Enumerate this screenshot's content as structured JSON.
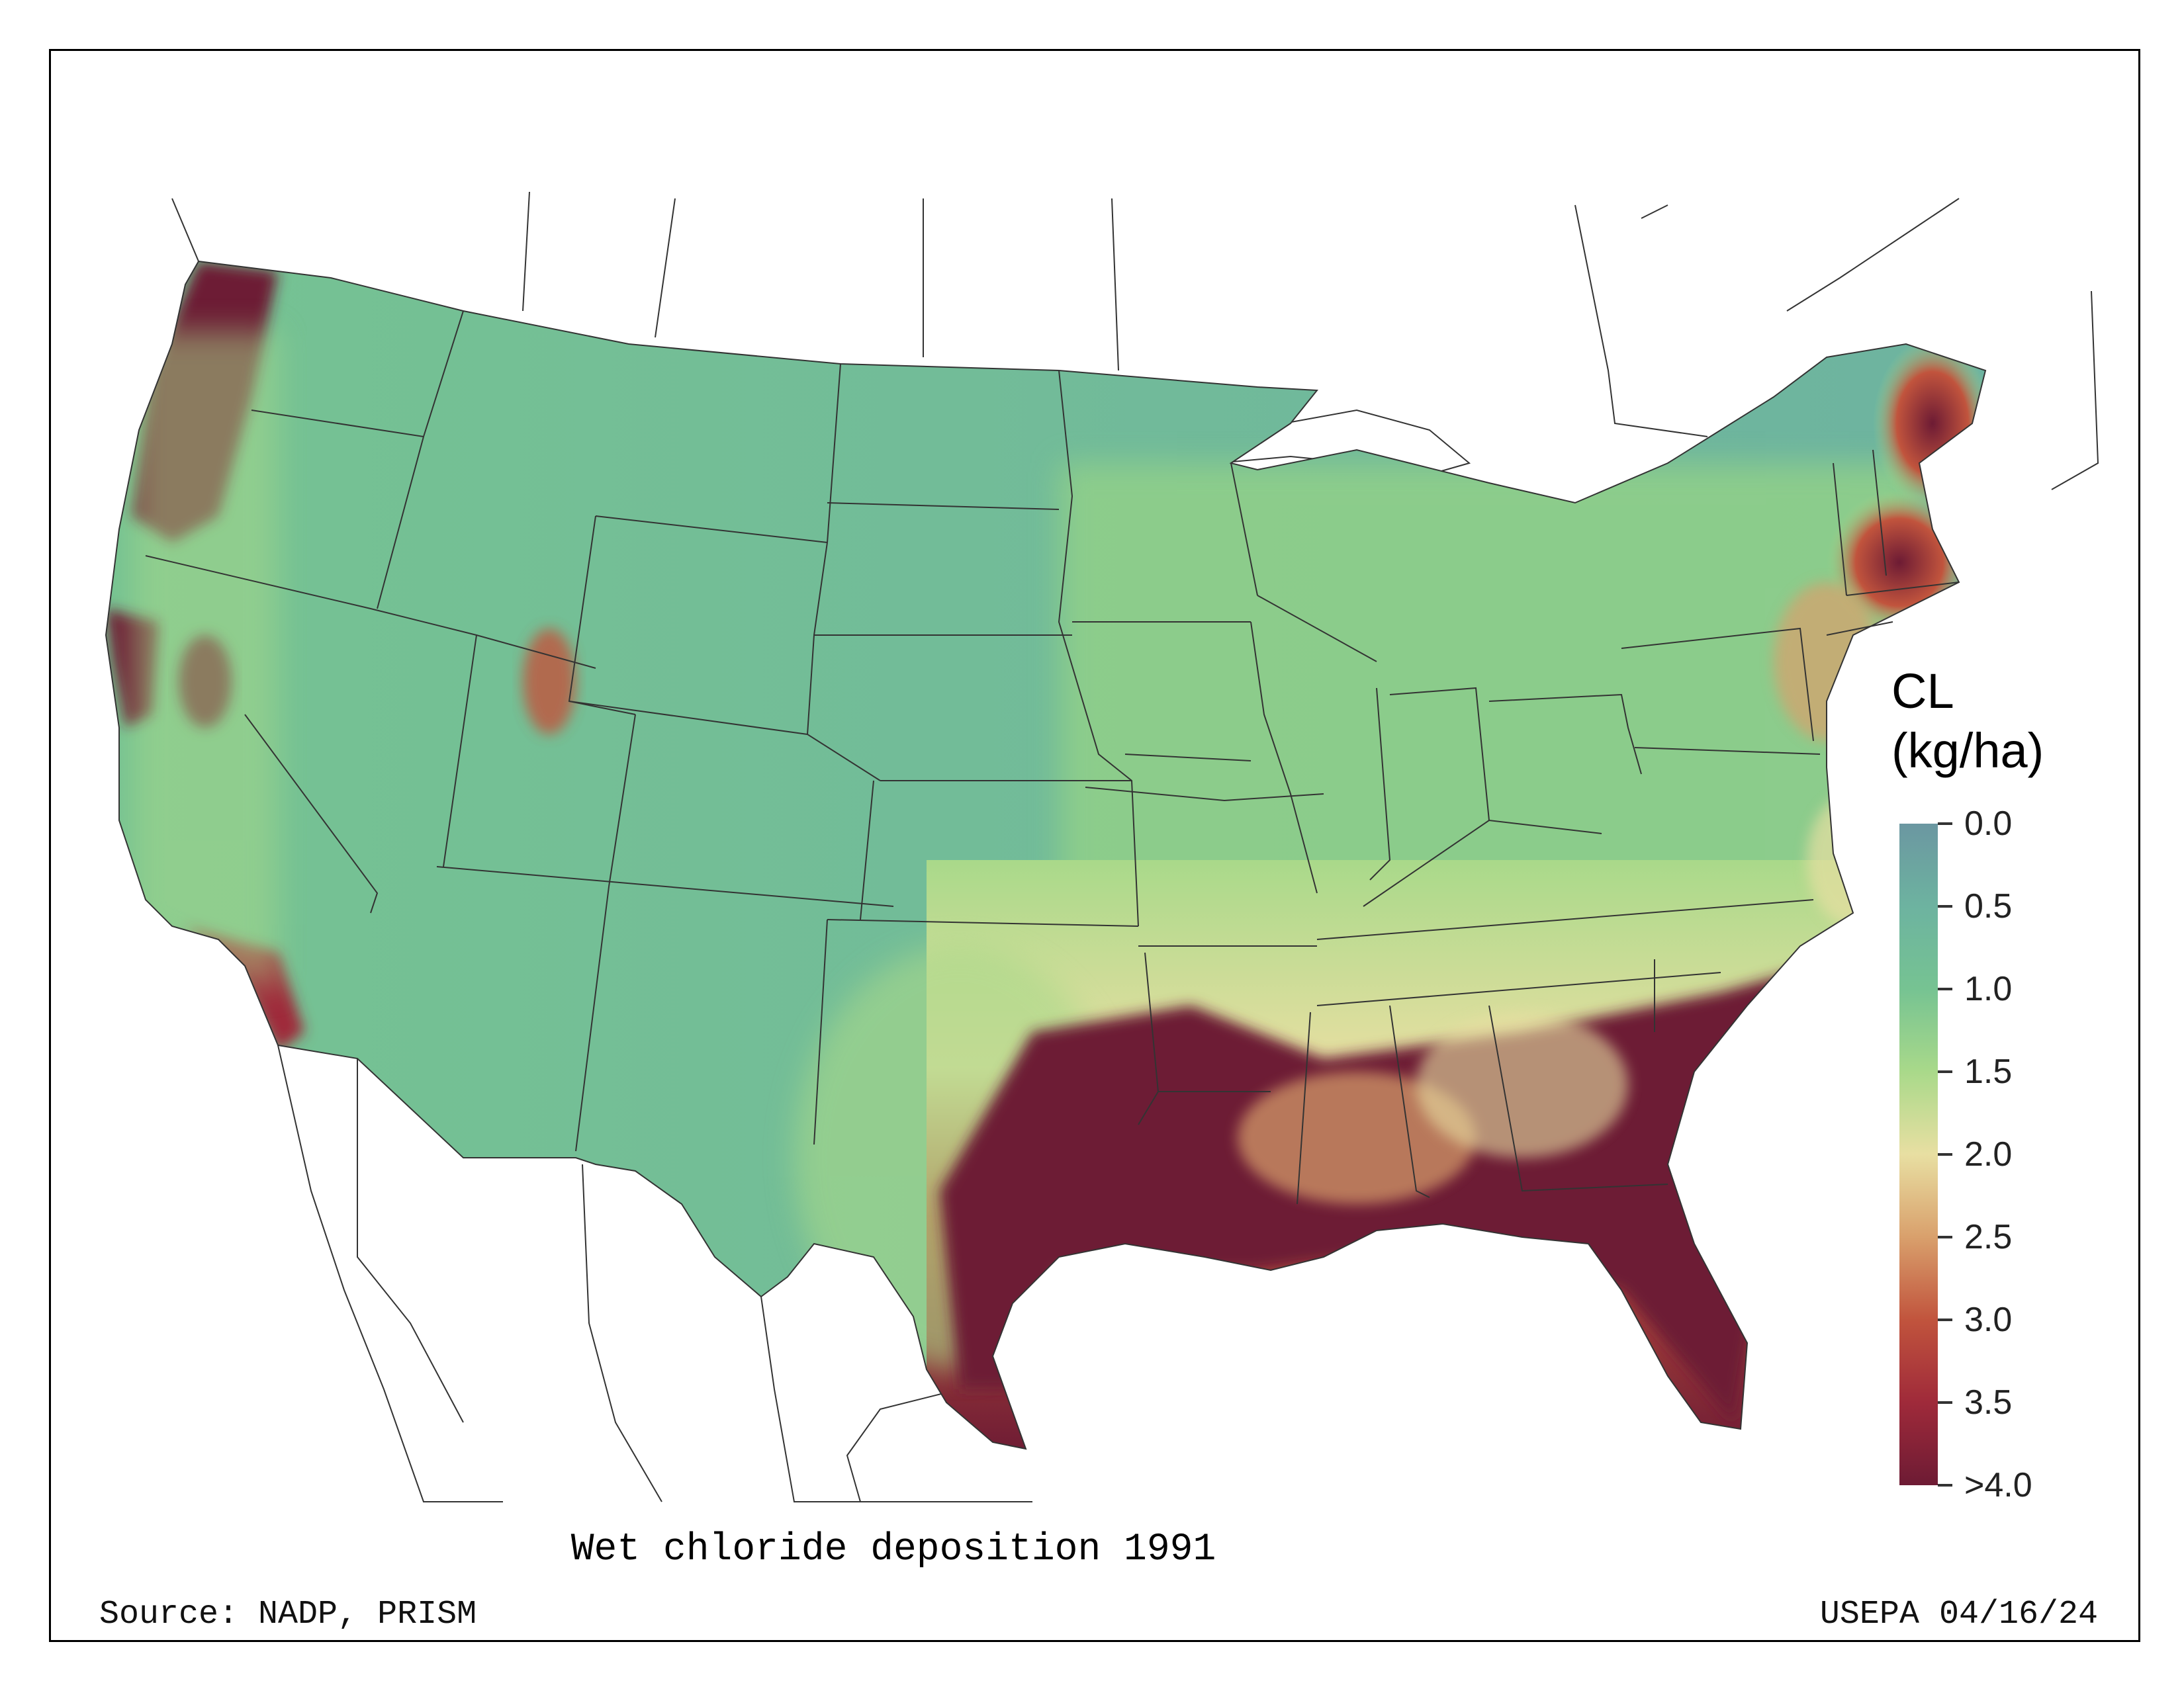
{
  "map": {
    "title": "Wet chloride deposition 1991",
    "source": "Source: NADP, PRISM",
    "credit": "USEPA 04/16/24"
  },
  "legend": {
    "title_line1": "CL",
    "title_line2": "(kg/ha)",
    "ticks": [
      "0.0",
      "0.5",
      "1.0",
      "1.5",
      "2.0",
      "2.5",
      "3.0",
      "3.5",
      ">4.0"
    ],
    "colors": {
      "low": "#6b97a1",
      "mid_low": "#76c392",
      "mid": "#e8dfa2",
      "mid_high": "#c1543d",
      "high": "#6d1b34"
    }
  }
}
